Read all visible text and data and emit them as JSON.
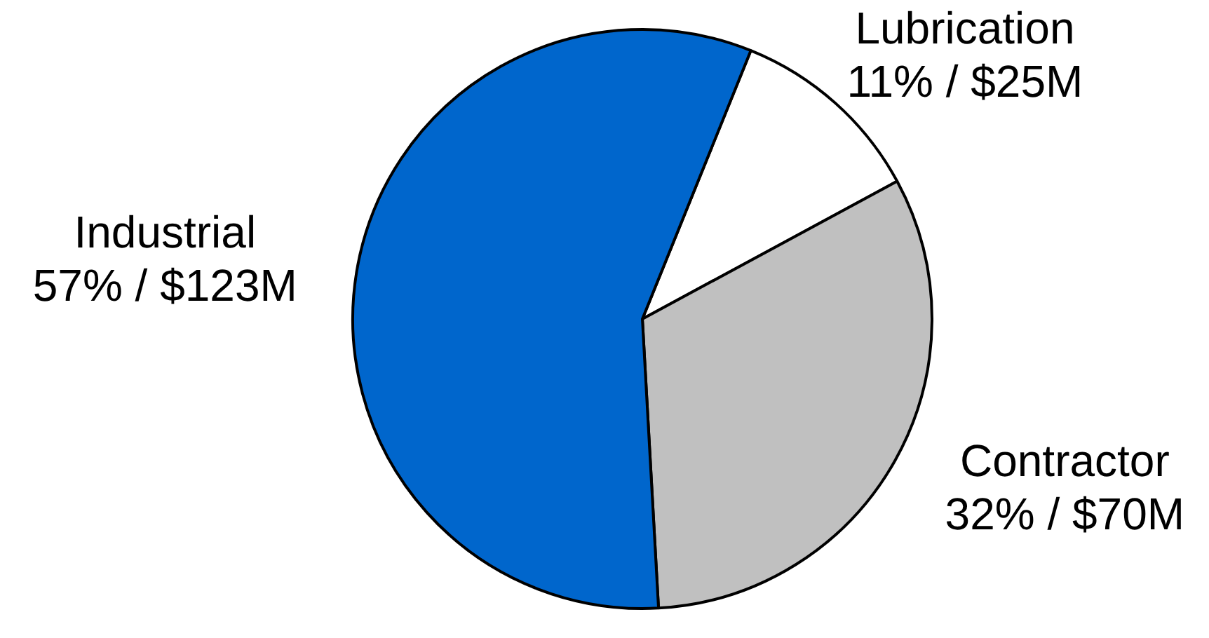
{
  "chart_data": {
    "type": "pie",
    "categories": [
      "Lubrication",
      "Contractor",
      "Industrial"
    ],
    "values": [
      11,
      32,
      57
    ],
    "value_labels": [
      "11% / $25M",
      "32% / $70M",
      "57% / $123M"
    ],
    "colors": [
      "#ffffff",
      "#c0c0c0",
      "#0066cc"
    ],
    "legend": false
  }
}
